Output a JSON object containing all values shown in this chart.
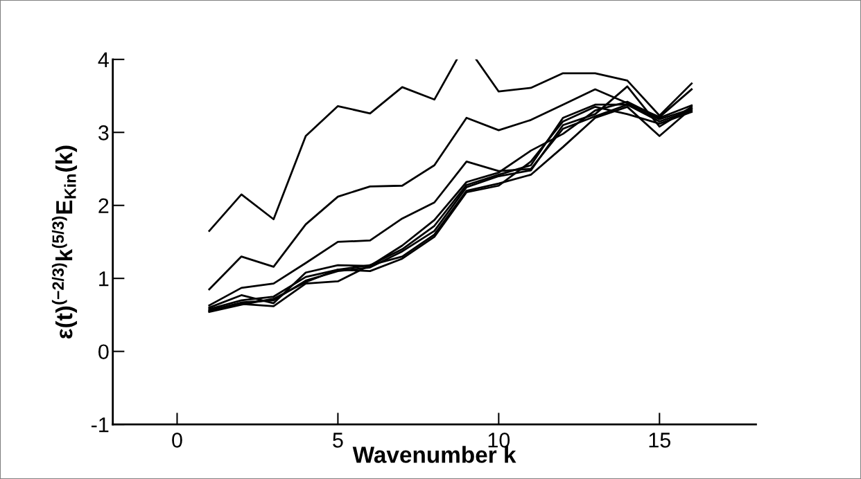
{
  "chart_data": {
    "type": "line",
    "xlabel": "Wavenumber k",
    "ylabel": "ε(t)$^{(−2/3)}$k$^{(5/3)}$E$_{Kin}$(k)",
    "x": [
      1,
      2,
      3,
      4,
      5,
      6,
      7,
      8,
      9,
      10,
      11,
      12,
      13,
      14,
      15,
      16
    ],
    "xlim": [
      -2,
      18
    ],
    "ylim": [
      -1,
      4
    ],
    "xticks": [
      0,
      5,
      10,
      15
    ],
    "yticks": [
      -1,
      0,
      1,
      2,
      3,
      4
    ],
    "grid": false,
    "line_style": "solid",
    "series": [
      {
        "color": "#000000",
        "x": [
          1,
          2,
          3,
          4,
          5,
          6,
          7,
          8,
          8.7
        ],
        "values": [
          1.65,
          2.15,
          1.81,
          2.95,
          3.36,
          3.26,
          3.62,
          3.45,
          4
        ]
      },
      {
        "color": "#000000",
        "x": [
          9.3,
          10,
          11,
          12,
          13,
          14,
          15,
          16
        ],
        "values": [
          4,
          3.56,
          3.61,
          3.81,
          3.81,
          3.71,
          3.23,
          3.67
        ]
      },
      {
        "color": "#000000",
        "values": [
          0.85,
          1.3,
          1.16,
          1.74,
          2.12,
          2.26,
          2.27,
          2.55,
          3.2,
          3.03,
          3.17,
          3.38,
          3.59,
          3.4,
          3.21,
          3.59
        ]
      },
      {
        "color": "#000000",
        "values": [
          0.63,
          0.87,
          0.93,
          1.21,
          1.5,
          1.52,
          1.82,
          2.04,
          2.6,
          2.47,
          2.5,
          3.05,
          3.22,
          3.38,
          3.18,
          3.32
        ]
      },
      {
        "color": "#000000",
        "values": [
          0.6,
          0.77,
          0.66,
          1.08,
          1.18,
          1.17,
          1.45,
          1.8,
          2.32,
          2.45,
          2.75,
          2.98,
          3.3,
          3.42,
          3.2,
          3.37
        ]
      },
      {
        "color": "#000000",
        "values": [
          0.58,
          0.7,
          0.75,
          1.02,
          1.12,
          1.18,
          1.4,
          1.72,
          2.28,
          2.42,
          2.55,
          3.2,
          3.38,
          3.38,
          3.15,
          3.3
        ]
      },
      {
        "color": "#000000",
        "values": [
          0.56,
          0.67,
          0.7,
          0.97,
          1.1,
          1.15,
          1.37,
          1.65,
          2.25,
          2.4,
          2.48,
          3.1,
          3.25,
          3.63,
          3.08,
          3.35
        ]
      },
      {
        "color": "#000000",
        "values": [
          0.55,
          0.65,
          0.62,
          0.93,
          0.96,
          1.18,
          1.3,
          1.6,
          2.2,
          2.3,
          2.42,
          2.8,
          3.2,
          3.35,
          2.95,
          3.33
        ]
      },
      {
        "color": "#000000",
        "values": [
          0.54,
          0.64,
          0.72,
          0.95,
          1.12,
          1.1,
          1.27,
          1.57,
          2.18,
          2.27,
          2.6,
          3.15,
          3.35,
          3.25,
          3.12,
          3.28
        ]
      }
    ]
  }
}
